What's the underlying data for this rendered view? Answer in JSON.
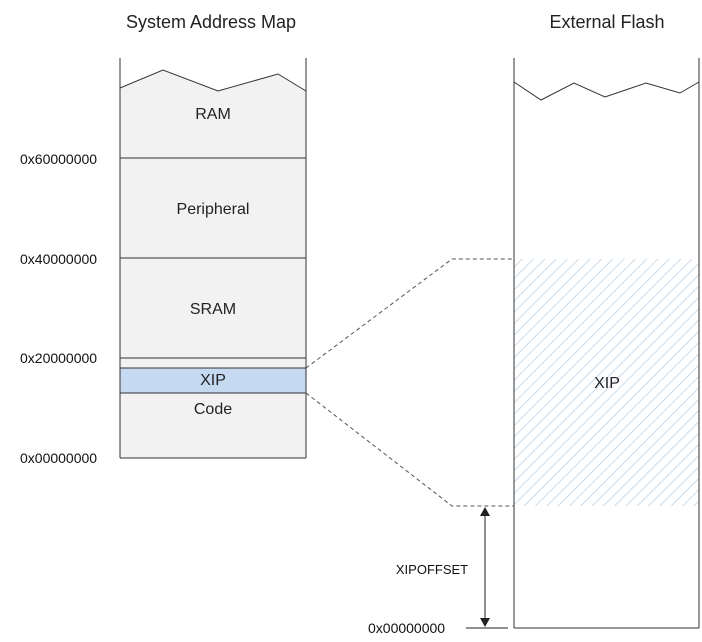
{
  "left_map": {
    "title": "System Address Map",
    "regions": {
      "ram": "RAM",
      "peripheral": "Peripheral",
      "sram": "SRAM",
      "xip": "XIP",
      "code": "Code"
    },
    "addresses": {
      "a60": "0x60000000",
      "a40": "0x40000000",
      "a20": "0x20000000",
      "a00": "0x00000000"
    }
  },
  "right_map": {
    "title": "External Flash",
    "xip_label": "XIP",
    "offset_label": "XIPOFFSET",
    "base_address": "0x00000000"
  },
  "colors": {
    "region_fill": "#f2f2f2",
    "xip_fill": "#c5d9f1",
    "hatch": "#b8cfe6",
    "line": "#333333"
  }
}
